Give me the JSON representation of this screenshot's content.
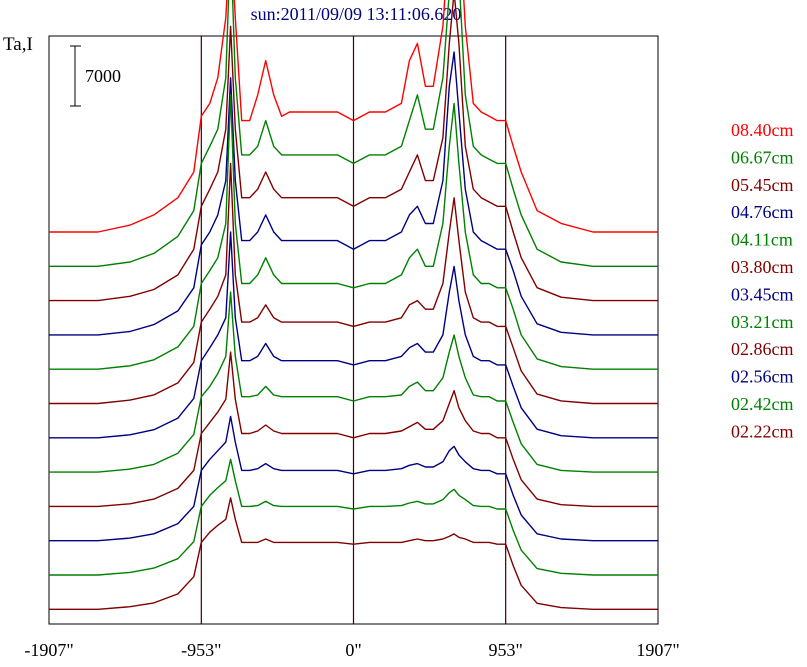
{
  "chart_data": {
    "type": "line",
    "title": "sun:2011/09/09 13:11:06.620",
    "ylabel": "Ta,I",
    "scale_bar": {
      "label": "7000",
      "value": 7000
    },
    "x_unit": "arcsec",
    "xlim": [
      -1907,
      1907
    ],
    "x_ticks": [
      {
        "value": -1907,
        "label": "-1907\""
      },
      {
        "value": -953,
        "label": "-953\""
      },
      {
        "value": 0,
        "label": "0\""
      },
      {
        "value": 953,
        "label": "953\""
      },
      {
        "value": 1907,
        "label": "1907\""
      }
    ],
    "vlines": [
      -953,
      0,
      953
    ],
    "x": [
      -1907,
      -1600,
      -1400,
      -1250,
      -1100,
      -1000,
      -953,
      -900,
      -850,
      -800,
      -770,
      -740,
      -700,
      -650,
      -600,
      -550,
      -500,
      -450,
      -400,
      -350,
      -300,
      -200,
      -100,
      0,
      100,
      200,
      300,
      350,
      400,
      450,
      500,
      560,
      600,
      630,
      660,
      700,
      750,
      800,
      850,
      900,
      953,
      1000,
      1050,
      1150,
      1300,
      1500,
      1907
    ],
    "series": [
      {
        "name": "08.40cm",
        "color": "#ff0000",
        "values": [
          0,
          0,
          800,
          2000,
          4000,
          7000,
          13500,
          15000,
          18000,
          25000,
          35000,
          25000,
          13000,
          13000,
          16000,
          20000,
          16000,
          13500,
          14000,
          14000,
          14000,
          14000,
          14000,
          13000,
          14000,
          14000,
          15000,
          20000,
          22000,
          17000,
          17000,
          24000,
          35000,
          40000,
          37000,
          24000,
          15000,
          14000,
          13500,
          13000,
          13000,
          10000,
          7000,
          2500,
          1000,
          0,
          0
        ]
      },
      {
        "name": "06.67cm",
        "color": "#008000",
        "values": [
          0,
          0,
          500,
          1500,
          3500,
          6500,
          12000,
          14000,
          16000,
          22000,
          38000,
          22000,
          13000,
          13000,
          14000,
          17000,
          14000,
          13000,
          13000,
          13000,
          13000,
          13000,
          13000,
          12000,
          13000,
          13000,
          14000,
          17000,
          20000,
          16000,
          16000,
          22000,
          32000,
          40000,
          34000,
          20000,
          14000,
          13000,
          12500,
          12000,
          12000,
          9000,
          6000,
          2000,
          500,
          0,
          0
        ]
      },
      {
        "name": "05.45cm",
        "color": "#800000",
        "values": [
          0,
          0,
          500,
          1300,
          3000,
          6000,
          11000,
          13000,
          15000,
          20000,
          32000,
          20000,
          12000,
          12000,
          13000,
          15000,
          13000,
          12000,
          12000,
          12000,
          12000,
          12000,
          12000,
          11000,
          12000,
          12000,
          13000,
          15000,
          17000,
          14000,
          14000,
          19000,
          30000,
          36000,
          30000,
          18000,
          13000,
          12000,
          11500,
          11000,
          11000,
          8000,
          5000,
          1500,
          400,
          0,
          0
        ]
      },
      {
        "name": "04.76cm",
        "color": "#000080",
        "values": [
          0,
          0,
          400,
          1200,
          2800,
          5500,
          10500,
          12000,
          14000,
          18000,
          30000,
          18000,
          11000,
          11000,
          12000,
          14000,
          12000,
          11000,
          11000,
          11000,
          11000,
          11000,
          11000,
          10000,
          11000,
          11000,
          12000,
          14000,
          15000,
          13000,
          13000,
          18000,
          29000,
          33000,
          26000,
          17000,
          12000,
          11000,
          10500,
          10000,
          10000,
          7500,
          4500,
          1300,
          300,
          0,
          0
        ]
      },
      {
        "name": "04.11cm",
        "color": "#008000",
        "values": [
          0,
          0,
          400,
          1100,
          2600,
          5000,
          10000,
          11500,
          13000,
          17000,
          32000,
          17000,
          10000,
          10000,
          11000,
          13000,
          11000,
          10000,
          10000,
          10000,
          10000,
          10000,
          10000,
          9500,
          10000,
          10000,
          11000,
          13000,
          14000,
          12000,
          12000,
          17000,
          26000,
          31000,
          24000,
          16000,
          11000,
          10000,
          10000,
          9500,
          9500,
          7000,
          4000,
          1200,
          300,
          0,
          0
        ]
      },
      {
        "name": "03.80cm",
        "color": "#800000",
        "values": [
          0,
          0,
          400,
          1000,
          2400,
          4800,
          9500,
          11000,
          12500,
          15000,
          28000,
          15000,
          9500,
          9500,
          10000,
          11500,
          10000,
          9500,
          9500,
          9500,
          9500,
          9500,
          9500,
          9000,
          9500,
          9500,
          10000,
          11500,
          12000,
          11000,
          11000,
          14000,
          20000,
          24000,
          19000,
          13000,
          10000,
          9500,
          9500,
          9000,
          9000,
          6500,
          3800,
          1100,
          300,
          0,
          0
        ]
      },
      {
        "name": "03.45cm",
        "color": "#000080",
        "values": [
          0,
          0,
          350,
          950,
          2300,
          4600,
          9000,
          10500,
          12000,
          14000,
          24000,
          14000,
          9000,
          9000,
          9500,
          11000,
          9500,
          9000,
          9000,
          9000,
          9000,
          9000,
          9000,
          8500,
          9000,
          9000,
          9500,
          10500,
          11000,
          10000,
          10000,
          12000,
          17000,
          20000,
          16000,
          12000,
          9500,
          9000,
          9000,
          8500,
          8500,
          6000,
          3500,
          1000,
          250,
          0,
          0
        ]
      },
      {
        "name": "03.21cm",
        "color": "#008000",
        "values": [
          0,
          0,
          350,
          900,
          2200,
          4400,
          8800,
          10000,
          11500,
          13500,
          21000,
          13500,
          8800,
          8800,
          9000,
          10000,
          9000,
          8800,
          8800,
          8800,
          8800,
          8800,
          8800,
          8300,
          8800,
          8800,
          9000,
          10000,
          10500,
          9500,
          9500,
          11000,
          14000,
          16000,
          13500,
          11000,
          9000,
          8800,
          8800,
          8300,
          8300,
          5800,
          3300,
          900,
          200,
          0,
          0
        ]
      },
      {
        "name": "02.86cm",
        "color": "#800000",
        "values": [
          0,
          0,
          300,
          850,
          2100,
          4200,
          8500,
          9800,
          11000,
          12500,
          18000,
          12500,
          8500,
          8500,
          8800,
          9500,
          8800,
          8500,
          8500,
          8500,
          8500,
          8500,
          8500,
          8000,
          8500,
          8500,
          8800,
          9300,
          9800,
          9000,
          9000,
          10000,
          12000,
          13500,
          11500,
          10000,
          8800,
          8500,
          8500,
          8000,
          8000,
          5500,
          3100,
          850,
          200,
          0,
          0
        ]
      },
      {
        "name": "02.56cm",
        "color": "#000080",
        "values": [
          0,
          0,
          300,
          800,
          2000,
          4000,
          8200,
          9500,
          10500,
          11500,
          14500,
          11500,
          8200,
          8200,
          8400,
          9000,
          8400,
          8200,
          8200,
          8200,
          8200,
          8200,
          8200,
          7800,
          8200,
          8200,
          8400,
          8800,
          9000,
          8600,
          8600,
          9200,
          10500,
          11000,
          10000,
          9200,
          8400,
          8200,
          8200,
          7800,
          7800,
          5300,
          3000,
          800,
          200,
          0,
          0
        ]
      },
      {
        "name": "02.42cm",
        "color": "#008000",
        "values": [
          0,
          0,
          300,
          800,
          1900,
          3900,
          8000,
          9300,
          10200,
          11000,
          13500,
          11000,
          8000,
          8000,
          8100,
          8600,
          8100,
          8000,
          8000,
          8000,
          8000,
          8000,
          8000,
          7700,
          8000,
          8000,
          8100,
          8400,
          8600,
          8300,
          8300,
          8800,
          9600,
          10000,
          9300,
          8800,
          8100,
          8000,
          8000,
          7700,
          7700,
          5200,
          2900,
          750,
          200,
          0,
          0
        ]
      },
      {
        "name": "02.22cm",
        "color": "#800000",
        "values": [
          0,
          0,
          300,
          750,
          1800,
          3800,
          7800,
          9000,
          9800,
          10500,
          13000,
          10500,
          7800,
          7800,
          7800,
          8200,
          7800,
          7800,
          7800,
          7800,
          7800,
          7800,
          7800,
          7600,
          7800,
          7800,
          7800,
          8000,
          8200,
          8000,
          8000,
          8200,
          8500,
          8800,
          8400,
          8200,
          7800,
          7800,
          7800,
          7600,
          7600,
          5100,
          2800,
          700,
          200,
          0,
          0
        ]
      }
    ],
    "grid": false,
    "legend_position": "right"
  }
}
